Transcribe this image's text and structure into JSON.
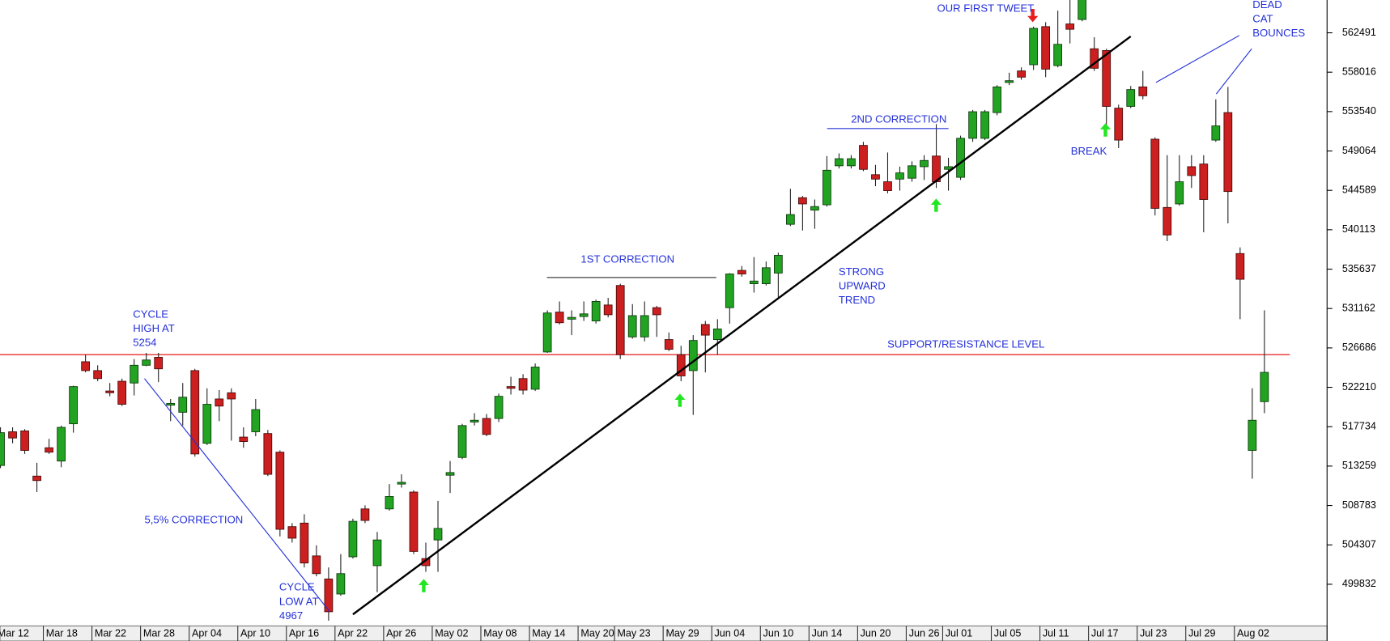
{
  "chart_data": {
    "type": "candlestick",
    "up_color": "#22a322",
    "down_color": "#cc1f1f",
    "categories": [
      "Mar 12",
      null,
      null,
      null,
      "Mar 18",
      null,
      null,
      null,
      "Mar 22",
      null,
      null,
      null,
      "Mar 28",
      null,
      null,
      null,
      "Apr 04",
      null,
      null,
      null,
      "Apr 10",
      null,
      null,
      null,
      "Apr 16",
      null,
      null,
      null,
      "Apr 22",
      null,
      null,
      null,
      "Apr 26",
      null,
      null,
      null,
      "May 02",
      null,
      null,
      null,
      "May 08",
      null,
      null,
      null,
      "May 14",
      null,
      null,
      null,
      "May 20",
      null,
      null,
      "May 23",
      null,
      null,
      null,
      "May 29",
      null,
      null,
      null,
      "Jun 04",
      null,
      null,
      null,
      "Jun 10",
      null,
      null,
      null,
      "Jun 14",
      null,
      null,
      null,
      "Jun 20",
      null,
      null,
      null,
      "Jun 26",
      null,
      null,
      "Jul 01",
      null,
      null,
      null,
      "Jul 05",
      null,
      null,
      null,
      "Jul 11",
      null,
      null,
      null,
      "Jul 17",
      null,
      null,
      null,
      "Jul 23",
      null,
      null,
      null,
      "Jul 29",
      null,
      null,
      null,
      "Aug 02",
      null,
      null
    ],
    "open": [
      513329,
      517158,
      517259,
      512121,
      515344,
      513833,
      518064,
      525116,
      524109,
      521792,
      522900,
      522698,
      524713,
      525620,
      520180,
      519374,
      524109,
      515848,
      520885,
      521590,
      516553,
      517158,
      516956,
      514841,
      506378,
      506781,
      503054,
      500435,
      498722,
      502953,
      508393,
      501945,
      508393,
      511214,
      510307,
      502752,
      504866,
      512221,
      514236,
      518266,
      518669,
      518669,
      522295,
      523202,
      521993,
      526224,
      530757,
      529952,
      530254,
      529750,
      531563,
      533780,
      527937,
      527937,
      531261,
      527634,
      525922,
      524109,
      529347,
      527634,
      531261,
      535492,
      533981,
      533981,
      535190,
      540731,
      543753,
      542343,
      542947,
      547380,
      547380,
      549697,
      546372,
      545567,
      545868,
      545969,
      547279,
      548488,
      546976,
      546070,
      550503,
      550503,
      553424,
      556849,
      558159,
      558864,
      563196,
      558763,
      563498,
      564002,
      560677,
      560476,
      553928,
      554129,
      556345,
      550402,
      542645,
      543048,
      547279,
      547581,
      550302,
      553424,
      537406,
      515042,
      520583
    ],
    "high": [
      517661,
      517661,
      517460,
      513632,
      516352,
      517863,
      522396,
      525922,
      524713,
      522698,
      523202,
      525418,
      526123,
      526123,
      520885,
      522698,
      524310,
      522094,
      521892,
      522094,
      517661,
      520885,
      517359,
      515042,
      506781,
      507789,
      504263,
      501744,
      503256,
      507285,
      508796,
      505774,
      511214,
      512322,
      510509,
      504565,
      509300,
      513833,
      518064,
      519273,
      519173,
      521489,
      523403,
      523705,
      524915,
      530959,
      531966,
      530959,
      531966,
      532168,
      532370,
      533981,
      531664,
      531966,
      531463,
      528440,
      526929,
      528138,
      529750,
      529952,
      535190,
      535996,
      537003,
      536499,
      537507,
      544760,
      543955,
      543551,
      548488,
      548790,
      548588,
      550100,
      547481,
      548891,
      547279,
      547883,
      548588,
      552114,
      548287,
      550805,
      553727,
      553727,
      556547,
      557957,
      558562,
      563196,
      563700,
      565009,
      566218,
      567225,
      561987,
      560677,
      554331,
      556446,
      558159,
      550604,
      548588,
      548588,
      548588,
      548588,
      554935,
      556345,
      538112,
      522094,
      530959
    ],
    "low": [
      513027,
      515848,
      514639,
      510307,
      514639,
      513128,
      517057,
      523907,
      522900,
      521187,
      520080,
      521288,
      524612,
      522799,
      518366,
      517863,
      514337,
      515647,
      518366,
      516150,
      515344,
      516654,
      512121,
      505270,
      504565,
      501744,
      500737,
      495700,
      498520,
      502752,
      506781,
      498924,
      508192,
      510811,
      503256,
      501241,
      501241,
      510206,
      514034,
      517863,
      516654,
      518266,
      521389,
      521389,
      521792,
      526123,
      529347,
      528138,
      529750,
      529448,
      530153,
      525418,
      527735,
      527433,
      527937,
      526325,
      522900,
      519072,
      523907,
      525922,
      529448,
      534787,
      532974,
      533780,
      532470,
      540530,
      540026,
      540227,
      542746,
      547077,
      547077,
      546775,
      545063,
      544256,
      544558,
      545567,
      545767,
      544861,
      544558,
      545767,
      550100,
      550302,
      553122,
      556547,
      557151,
      558260,
      557454,
      558562,
      561282,
      563800,
      558159,
      551611,
      549394,
      553928,
      554935,
      541738,
      538817,
      542846,
      544861,
      539824,
      550100,
      540832,
      529952,
      511818,
      519273
    ],
    "close": [
      517057,
      516452,
      515042,
      511617,
      514841,
      517661,
      522295,
      524109,
      523202,
      521590,
      520281,
      524713,
      525317,
      524310,
      520382,
      521086,
      514639,
      520281,
      520080,
      520885,
      516049,
      519676,
      512322,
      506076,
      505068,
      502248,
      501039,
      496707,
      501039,
      506983,
      507084,
      504866,
      509804,
      511416,
      503558,
      501945,
      506177,
      512524,
      517863,
      518467,
      516855,
      521187,
      522094,
      521892,
      524511,
      530657,
      529549,
      530153,
      530556,
      531966,
      530455,
      525922,
      530355,
      530355,
      530455,
      526526,
      523504,
      527534,
      528138,
      528843,
      535089,
      535089,
      534283,
      535794,
      537205,
      541839,
      543048,
      542746,
      546876,
      548186,
      548186,
      546976,
      545868,
      544558,
      546574,
      547380,
      547984,
      545567,
      547279,
      550503,
      553525,
      553525,
      556345,
      557051,
      557454,
      562994,
      558360,
      561181,
      562893,
      566722,
      558461,
      554129,
      550302,
      556043,
      555338,
      542544,
      539522,
      545567,
      546271,
      543551,
      551913,
      544458,
      534485,
      518467,
      523907
    ],
    "ylim": [
      495097,
      566218
    ],
    "yticks": [
      499832,
      504307,
      508783,
      513259,
      517734,
      522210,
      526686,
      531162,
      535637,
      540113,
      544589,
      549064,
      553540,
      558016,
      562491
    ],
    "support_level": 525922,
    "trend_line": {
      "x": [
        29,
        93
      ],
      "values": [
        496405,
        562088
      ]
    },
    "annotations": [
      [
        "CYCLE",
        "HIGH AT",
        "5254"
      ],
      [
        "5,5% CORRECTION"
      ],
      [
        "CYCLE",
        "LOW AT",
        "4967"
      ],
      [
        "1ST CORRECTION"
      ],
      [
        "STRONG",
        "UPWARD",
        "TREND"
      ],
      [
        "2ND CORRECTION"
      ],
      [
        "OUR FIRST TWEET"
      ],
      [
        "BREAK"
      ],
      [
        "DEAD",
        "CAT",
        "BOUNCES"
      ],
      [
        "SUPPORT/RESISTANCE LEVEL"
      ]
    ]
  }
}
